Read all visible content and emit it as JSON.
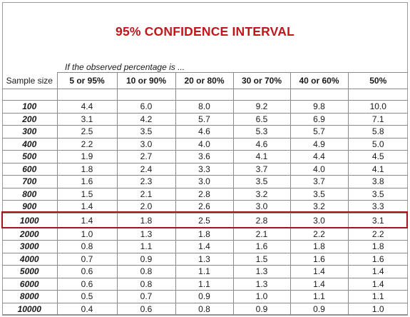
{
  "title": "95% CONFIDENCE INTERVAL",
  "subtitle": "If the observed percentage is ...",
  "header": {
    "sample_size_label": "Sample size",
    "columns": [
      "5 or 95%",
      "10 or 90%",
      "20 or 80%",
      "30 or 70%",
      "40 or 60%",
      "50%"
    ]
  },
  "rows": [
    {
      "size": "100",
      "values": [
        "4.4",
        "6.0",
        "8.0",
        "9.2",
        "9.8",
        "10.0"
      ]
    },
    {
      "size": "200",
      "values": [
        "3.1",
        "4.2",
        "5.7",
        "6.5",
        "6.9",
        "7.1"
      ]
    },
    {
      "size": "300",
      "values": [
        "2.5",
        "3.5",
        "4.6",
        "5.3",
        "5.7",
        "5.8"
      ]
    },
    {
      "size": "400",
      "values": [
        "2.2",
        "3.0",
        "4.0",
        "4.6",
        "4.9",
        "5.0"
      ]
    },
    {
      "size": "500",
      "values": [
        "1.9",
        "2.7",
        "3.6",
        "4.1",
        "4.4",
        "4.5"
      ]
    },
    {
      "size": "600",
      "values": [
        "1.8",
        "2.4",
        "3.3",
        "3.7",
        "4.0",
        "4.1"
      ]
    },
    {
      "size": "700",
      "values": [
        "1.6",
        "2.3",
        "3.0",
        "3.5",
        "3.7",
        "3.8"
      ]
    },
    {
      "size": "800",
      "values": [
        "1.5",
        "2.1",
        "2.8",
        "3.2",
        "3.5",
        "3.5"
      ]
    },
    {
      "size": "900",
      "values": [
        "1.4",
        "2.0",
        "2.6",
        "3.0",
        "3.2",
        "3.3"
      ]
    },
    {
      "size": "1000",
      "values": [
        "1.4",
        "1.8",
        "2.5",
        "2.8",
        "3.0",
        "3.1"
      ]
    },
    {
      "size": "2000",
      "values": [
        "1.0",
        "1.3",
        "1.8",
        "2.1",
        "2.2",
        "2.2"
      ]
    },
    {
      "size": "3000",
      "values": [
        "0.8",
        "1.1",
        "1.4",
        "1.6",
        "1.8",
        "1.8"
      ]
    },
    {
      "size": "4000",
      "values": [
        "0.7",
        "0.9",
        "1.3",
        "1.5",
        "1.6",
        "1.6"
      ]
    },
    {
      "size": "5000",
      "values": [
        "0.6",
        "0.8",
        "1.1",
        "1.3",
        "1.4",
        "1.4"
      ]
    },
    {
      "size": "6000",
      "values": [
        "0.6",
        "0.8",
        "1.1",
        "1.3",
        "1.4",
        "1.4"
      ]
    },
    {
      "size": "8000",
      "values": [
        "0.5",
        "0.7",
        "0.9",
        "1.0",
        "1.1",
        "1.1"
      ]
    },
    {
      "size": "10000",
      "values": [
        "0.4",
        "0.6",
        "0.8",
        "0.9",
        "0.9",
        "1.0"
      ]
    }
  ],
  "highlighted_sample_size": "1000",
  "colors": {
    "title": "#c0161c",
    "highlight_border": "#a3161c",
    "grid": "#8a8a8a"
  }
}
